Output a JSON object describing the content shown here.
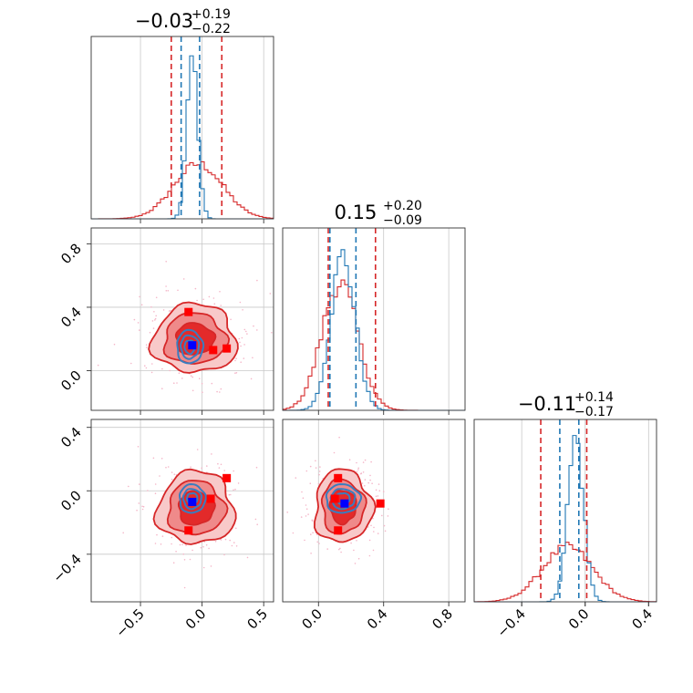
{
  "figure": {
    "type": "corner",
    "colors": {
      "red": "#d62728",
      "red_dark": "#e32a2a",
      "red_mid": "#ef8a8a",
      "red_light": "#f8c9c9",
      "blue": "#1f77b4",
      "blue_contour": "#3a7dbf",
      "pure_blue": "#0000ff",
      "pure_red": "#ff0000",
      "scatter": "#f4b6c8"
    }
  },
  "chart_data": [
    {
      "id": "hist-p1",
      "type": "histogram",
      "title": {
        "main": "−0.03",
        "sup": "+0.19",
        "sub": "−0.22"
      },
      "xlim": [
        -0.9,
        0.58
      ],
      "xticks": [
        -0.5,
        0.0,
        0.5
      ],
      "series": [
        {
          "color": "red",
          "center": -0.03,
          "sigma": 0.2,
          "peak": 0.3
        },
        {
          "color": "blue",
          "center": -0.08,
          "sigma": 0.045,
          "peak": 0.9
        }
      ],
      "red_lines": [
        -0.25,
        0.16
      ],
      "blue_lines": [
        -0.17,
        -0.02
      ]
    },
    {
      "id": "hist-p2",
      "type": "histogram",
      "title": {
        "main": "0.15",
        "sup": "+0.20",
        "sub": "−0.09"
      },
      "xlim": [
        -0.22,
        0.9
      ],
      "xticks": [
        0.0,
        0.4,
        0.8
      ],
      "series": [
        {
          "color": "red",
          "center": 0.13,
          "sigma": 0.11,
          "peak": 0.7
        },
        {
          "color": "blue",
          "center": 0.15,
          "sigma": 0.075,
          "peak": 0.85
        }
      ],
      "red_lines": [
        0.06,
        0.35
      ],
      "blue_lines": [
        0.07,
        0.23
      ]
    },
    {
      "id": "hist-p3",
      "type": "histogram",
      "title": {
        "main": "−0.11",
        "sup": "+0.14",
        "sub": "−0.17"
      },
      "xlim": [
        -0.7,
        0.45
      ],
      "xticks": [
        -0.4,
        0.0,
        0.4
      ],
      "series": [
        {
          "color": "red",
          "center": -0.11,
          "sigma": 0.16,
          "peak": 0.3
        },
        {
          "color": "blue",
          "center": -0.06,
          "sigma": 0.05,
          "peak": 0.9
        }
      ],
      "red_lines": [
        -0.28,
        0.01
      ],
      "blue_lines": [
        -0.16,
        -0.04
      ]
    },
    {
      "id": "contour-p1-p2",
      "type": "contour",
      "xlim": [
        -0.9,
        0.58
      ],
      "ylim": [
        -0.25,
        0.9
      ],
      "xticks": [
        -0.5,
        0.0,
        0.5
      ],
      "yticks": [
        0.0,
        0.4,
        0.8
      ],
      "ytick_labels": [
        "0.0",
        "0.4",
        "0.8"
      ],
      "center": [
        -0.06,
        0.2
      ],
      "spread": [
        0.25,
        0.16
      ],
      "blue_center": [
        -0.1,
        0.15
      ],
      "blue_spread": [
        0.07,
        0.07
      ],
      "blue_point": [
        -0.08,
        0.16
      ],
      "red_points": [
        [
          -0.11,
          0.37
        ],
        [
          0.09,
          0.13
        ],
        [
          0.2,
          0.14
        ]
      ]
    },
    {
      "id": "contour-p1-p3",
      "type": "contour",
      "xlim": [
        -0.9,
        0.58
      ],
      "ylim": [
        -0.7,
        0.45
      ],
      "xticks": [
        -0.5,
        0.0,
        0.5
      ],
      "xtick_labels": [
        "−0.5",
        "0.0",
        "0.5"
      ],
      "yticks": [
        -0.4,
        0.0,
        0.4
      ],
      "ytick_labels": [
        "−0.4",
        "0.0",
        "0.4"
      ],
      "center": [
        -0.05,
        -0.11
      ],
      "spread": [
        0.23,
        0.17
      ],
      "blue_center": [
        -0.08,
        -0.05
      ],
      "blue_spread": [
        0.07,
        0.06
      ],
      "blue_point": [
        -0.08,
        -0.07
      ],
      "red_points": [
        [
          0.2,
          0.08
        ],
        [
          -0.11,
          -0.25
        ],
        [
          0.07,
          -0.05
        ]
      ]
    },
    {
      "id": "contour-p2-p3",
      "type": "contour",
      "xlim": [
        -0.22,
        0.9
      ],
      "ylim": [
        -0.7,
        0.45
      ],
      "xticks": [
        0.0,
        0.4,
        0.8
      ],
      "xtick_labels": [
        "0.0",
        "0.4",
        "0.8"
      ],
      "center": [
        0.15,
        -0.1
      ],
      "spread": [
        0.13,
        0.17
      ],
      "blue_center": [
        0.15,
        -0.05
      ],
      "blue_spread": [
        0.07,
        0.06
      ],
      "blue_point": [
        0.16,
        -0.08
      ],
      "red_points": [
        [
          0.12,
          0.08
        ],
        [
          0.12,
          -0.25
        ],
        [
          0.38,
          -0.08
        ],
        [
          0.1,
          -0.05
        ]
      ]
    }
  ]
}
